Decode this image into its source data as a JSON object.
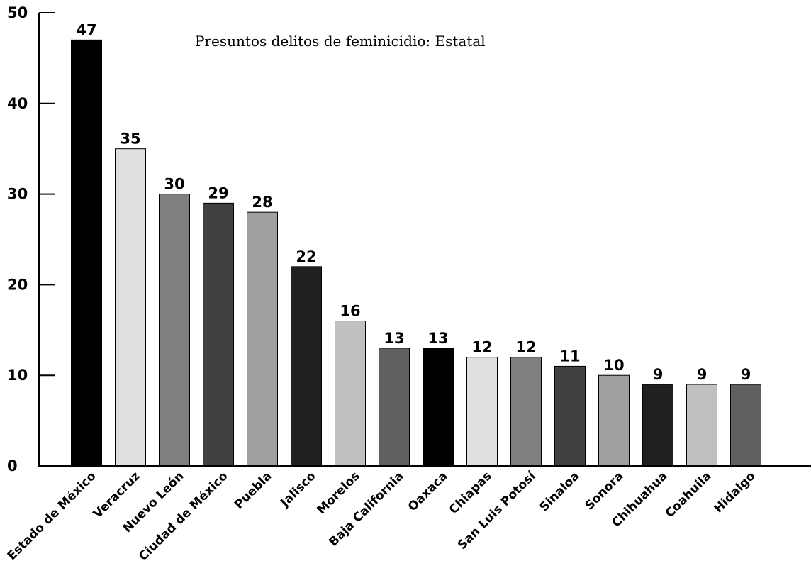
{
  "chart_data": {
    "type": "bar",
    "title": "Presuntos delitos de feminicidio: Estatal",
    "xlabel": "",
    "ylabel": "",
    "ylim": [
      0,
      50
    ],
    "y_ticks": [
      0,
      10,
      20,
      30,
      40,
      50
    ],
    "grid": false,
    "legend": "none",
    "categories": [
      "Estado de México",
      "Veracruz",
      "Nuevo León",
      "Ciudad de México",
      "Puebla",
      "Jalisco",
      "Morelos",
      "Baja California",
      "Oaxaca",
      "Chiapas",
      "San Luis Potosí",
      "Sinaloa",
      "Sonora",
      "Chihuahua",
      "Coahuila",
      "Hidalgo"
    ],
    "values": [
      47,
      35,
      30,
      29,
      28,
      22,
      16,
      13,
      13,
      12,
      12,
      11,
      10,
      9,
      9,
      9
    ],
    "bar_colors": [
      "#000000",
      "#e0e0e0",
      "#808080",
      "#404040",
      "#a0a0a0",
      "#202020",
      "#c0c0c0",
      "#606060",
      "#000000",
      "#e0e0e0",
      "#808080",
      "#404040",
      "#a0a0a0",
      "#202020",
      "#c0c0c0",
      "#606060"
    ],
    "axis_color": "#000000"
  }
}
